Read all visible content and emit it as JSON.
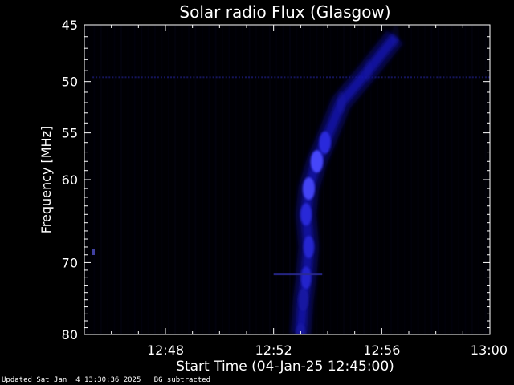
{
  "chart_data": {
    "type": "heatmap",
    "title": "Solar radio Flux (Glasgow)",
    "xlabel": "Start Time (04-Jan-25 12:45:00)",
    "ylabel": "Frequency [MHz]",
    "x_start": "12:45:00",
    "x_end": "13:00:00",
    "x_unit": "minutes after 12:45",
    "xlim": [
      0,
      15
    ],
    "xticks": [
      {
        "label": "12:48",
        "value": 3
      },
      {
        "label": "12:52",
        "value": 7
      },
      {
        "label": "12:56",
        "value": 11
      },
      {
        "label": "13:00",
        "value": 15
      }
    ],
    "ylim": [
      45,
      80
    ],
    "y_scale": "log",
    "y_inverted": true,
    "yticks": [
      45,
      50,
      55,
      60,
      70,
      80
    ],
    "colormap": [
      "#000000",
      "#0000ff",
      "#ffffff"
    ],
    "background_color": "#000000",
    "burst": {
      "description_points": [
        {
          "x": 8.0,
          "y": 80,
          "intensity": 0.55
        },
        {
          "x": 8.1,
          "y": 75,
          "intensity": 0.6
        },
        {
          "x": 8.2,
          "y": 72,
          "intensity": 0.65
        },
        {
          "x": 8.3,
          "y": 68,
          "intensity": 0.7
        },
        {
          "x": 8.2,
          "y": 64,
          "intensity": 0.8
        },
        {
          "x": 8.3,
          "y": 61,
          "intensity": 0.9
        },
        {
          "x": 8.6,
          "y": 58,
          "intensity": 0.95
        },
        {
          "x": 8.9,
          "y": 56,
          "intensity": 0.85
        },
        {
          "x": 9.5,
          "y": 52,
          "intensity": 0.3
        },
        {
          "x": 10.5,
          "y": 49,
          "intensity": 0.2
        },
        {
          "x": 11.5,
          "y": 46,
          "intensity": 0.15
        }
      ]
    },
    "hline": {
      "y": 71.5,
      "x_from": 7.0,
      "x_to": 8.8
    },
    "hline_50": {
      "y": 49.6,
      "x_from": 0.3,
      "x_to": 15
    }
  },
  "footer": {
    "updated": "Updated Sat Jan  4 13:30:36 2025",
    "bg_note": "BG subtracted"
  }
}
